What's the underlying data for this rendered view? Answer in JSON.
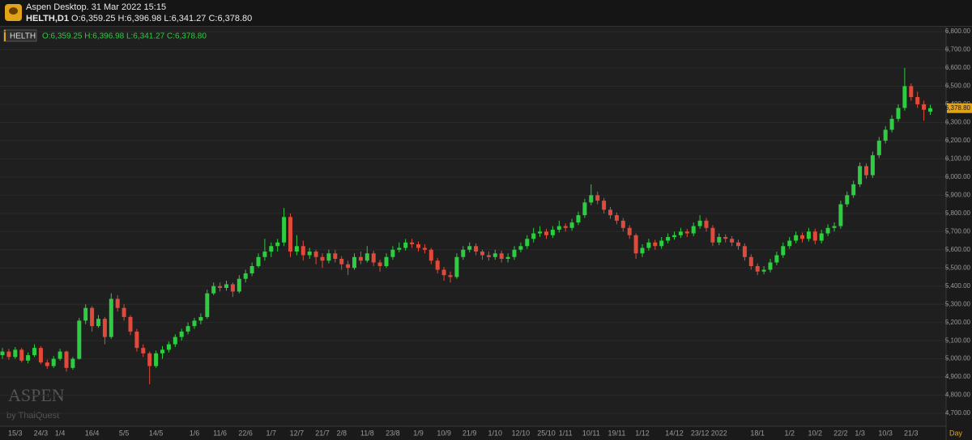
{
  "header": {
    "title": "Aspen Desktop. 31 Mar 2022 15:15",
    "symbol": "HELTH,D1",
    "ohlc_text": "O:6,359.25 H:6,396.98 L:6,341.27 C:6,378.80"
  },
  "chart_data": {
    "type": "candlestick",
    "legend_symbol": "HELTH",
    "legend_text": "O:6,359.25 H:6,396.98 L:6,341.27 C:6,378.80",
    "watermark": "ASPEN",
    "watermark_sub": "by ThaiQuest",
    "x_unit_label": "Day",
    "last_label": {
      "value": 6378.8,
      "label": "6,378.80"
    },
    "up_color": "#2ecc40",
    "down_color": "#e04a3a",
    "grid": true,
    "ylim": [
      4629,
      6827
    ],
    "yticks": [
      {
        "value": 4700,
        "label": "4,700.00"
      },
      {
        "value": 4800,
        "label": "4,800.00"
      },
      {
        "value": 4900,
        "label": "4,900.00"
      },
      {
        "value": 5000,
        "label": "5,000.00"
      },
      {
        "value": 5100,
        "label": "5,100.00"
      },
      {
        "value": 5200,
        "label": "5,200.00"
      },
      {
        "value": 5300,
        "label": "5,300.00"
      },
      {
        "value": 5400,
        "label": "5,400.00"
      },
      {
        "value": 5500,
        "label": "5,500.00"
      },
      {
        "value": 5600,
        "label": "5,600.00"
      },
      {
        "value": 5700,
        "label": "5,700.00"
      },
      {
        "value": 5800,
        "label": "5,800.00"
      },
      {
        "value": 5900,
        "label": "5,900.00"
      },
      {
        "value": 6000,
        "label": "6,000.00"
      },
      {
        "value": 6100,
        "label": "6,100.00"
      },
      {
        "value": 6200,
        "label": "6,200.00"
      },
      {
        "value": 6300,
        "label": "6,300.00"
      },
      {
        "value": 6400,
        "label": "6,400.00"
      },
      {
        "value": 6500,
        "label": "6,500.00"
      },
      {
        "value": 6600,
        "label": "6,600.00"
      },
      {
        "value": 6700,
        "label": "6,700.00"
      },
      {
        "value": 6800,
        "label": "6,800.00"
      }
    ],
    "categories": [
      null,
      null,
      "15/3",
      null,
      null,
      null,
      "24/3",
      null,
      null,
      "1/4",
      null,
      null,
      null,
      null,
      "16/4",
      null,
      null,
      null,
      null,
      "5/5",
      null,
      null,
      null,
      null,
      "14/5",
      null,
      null,
      null,
      null,
      null,
      "1/6",
      null,
      null,
      null,
      "11/6",
      null,
      null,
      null,
      "22/6",
      null,
      null,
      null,
      "1/7",
      null,
      null,
      null,
      "12/7",
      null,
      null,
      null,
      "21/7",
      null,
      null,
      "2/8",
      null,
      null,
      null,
      "11/8",
      null,
      null,
      null,
      "23/8",
      null,
      null,
      null,
      "1/9",
      null,
      null,
      null,
      "10/9",
      null,
      null,
      null,
      "21/9",
      null,
      null,
      null,
      "1/10",
      null,
      null,
      null,
      "12/10",
      null,
      null,
      null,
      "25/10",
      null,
      null,
      "1/11",
      null,
      null,
      null,
      "10/11",
      null,
      null,
      null,
      "19/11",
      null,
      null,
      null,
      "1/12",
      null,
      null,
      null,
      null,
      "14/12",
      null,
      null,
      null,
      "23/12",
      null,
      null,
      "2022",
      null,
      null,
      null,
      null,
      null,
      "18/1",
      null,
      null,
      null,
      null,
      "1/2",
      null,
      null,
      null,
      "10/2",
      null,
      null,
      null,
      "22/2",
      null,
      null,
      "1/3",
      null,
      null,
      null,
      "10/3",
      null,
      null,
      null,
      "21/3",
      null,
      null,
      null
    ],
    "ohlc": [
      [
        5020,
        5060,
        5000,
        5040
      ],
      [
        5040,
        5055,
        4995,
        5010
      ],
      [
        5010,
        5065,
        5000,
        5050
      ],
      [
        5050,
        5060,
        4980,
        4990
      ],
      [
        4990,
        5035,
        4975,
        5020
      ],
      [
        5020,
        5080,
        5010,
        5060
      ],
      [
        5060,
        5070,
        4970,
        4980
      ],
      [
        4980,
        4995,
        4945,
        4960
      ],
      [
        4960,
        5015,
        4950,
        5000
      ],
      [
        5000,
        5055,
        4990,
        5040
      ],
      [
        5040,
        5045,
        4930,
        4950
      ],
      [
        4950,
        5010,
        4940,
        5000
      ],
      [
        5000,
        5225,
        4995,
        5210
      ],
      [
        5210,
        5300,
        5190,
        5280
      ],
      [
        5280,
        5290,
        5150,
        5180
      ],
      [
        5180,
        5240,
        5170,
        5220
      ],
      [
        5220,
        5230,
        5080,
        5120
      ],
      [
        5120,
        5360,
        5110,
        5330
      ],
      [
        5330,
        5350,
        5260,
        5280
      ],
      [
        5280,
        5300,
        5210,
        5230
      ],
      [
        5230,
        5240,
        5130,
        5150
      ],
      [
        5150,
        5165,
        5040,
        5060
      ],
      [
        5060,
        5080,
        5010,
        5030
      ],
      [
        5030,
        5040,
        4860,
        4960
      ],
      [
        4960,
        5045,
        4950,
        5030
      ],
      [
        5030,
        5070,
        5000,
        5050
      ],
      [
        5050,
        5095,
        5035,
        5080
      ],
      [
        5080,
        5135,
        5065,
        5120
      ],
      [
        5120,
        5165,
        5100,
        5150
      ],
      [
        5150,
        5200,
        5135,
        5180
      ],
      [
        5180,
        5225,
        5165,
        5210
      ],
      [
        5210,
        5250,
        5190,
        5230
      ],
      [
        5230,
        5380,
        5220,
        5360
      ],
      [
        5360,
        5420,
        5350,
        5400
      ],
      [
        5400,
        5420,
        5370,
        5390
      ],
      [
        5390,
        5430,
        5375,
        5410
      ],
      [
        5410,
        5420,
        5340,
        5370
      ],
      [
        5370,
        5460,
        5360,
        5440
      ],
      [
        5440,
        5490,
        5420,
        5470
      ],
      [
        5470,
        5530,
        5455,
        5510
      ],
      [
        5510,
        5580,
        5500,
        5560
      ],
      [
        5560,
        5660,
        5540,
        5590
      ],
      [
        5590,
        5640,
        5560,
        5620
      ],
      [
        5620,
        5660,
        5590,
        5640
      ],
      [
        5640,
        5830,
        5620,
        5780
      ],
      [
        5780,
        5800,
        5560,
        5590
      ],
      [
        5590,
        5680,
        5570,
        5620
      ],
      [
        5620,
        5650,
        5540,
        5570
      ],
      [
        5570,
        5610,
        5550,
        5590
      ],
      [
        5590,
        5600,
        5520,
        5560
      ],
      [
        5560,
        5580,
        5500,
        5540
      ],
      [
        5540,
        5600,
        5525,
        5580
      ],
      [
        5580,
        5600,
        5530,
        5550
      ],
      [
        5550,
        5565,
        5490,
        5520
      ],
      [
        5520,
        5540,
        5460,
        5500
      ],
      [
        5500,
        5580,
        5490,
        5560
      ],
      [
        5560,
        5590,
        5520,
        5540
      ],
      [
        5540,
        5620,
        5530,
        5580
      ],
      [
        5580,
        5595,
        5510,
        5530
      ],
      [
        5530,
        5545,
        5480,
        5510
      ],
      [
        5510,
        5580,
        5500,
        5560
      ],
      [
        5560,
        5620,
        5545,
        5600
      ],
      [
        5600,
        5640,
        5585,
        5610
      ],
      [
        5610,
        5660,
        5595,
        5640
      ],
      [
        5640,
        5660,
        5610,
        5630
      ],
      [
        5630,
        5645,
        5590,
        5610
      ],
      [
        5610,
        5630,
        5580,
        5600
      ],
      [
        5600,
        5610,
        5520,
        5540
      ],
      [
        5540,
        5555,
        5470,
        5490
      ],
      [
        5490,
        5505,
        5430,
        5460
      ],
      [
        5460,
        5480,
        5420,
        5450
      ],
      [
        5450,
        5580,
        5440,
        5560
      ],
      [
        5560,
        5620,
        5545,
        5600
      ],
      [
        5600,
        5640,
        5585,
        5620
      ],
      [
        5620,
        5635,
        5570,
        5590
      ],
      [
        5590,
        5600,
        5545,
        5570
      ],
      [
        5570,
        5590,
        5540,
        5560
      ],
      [
        5560,
        5600,
        5545,
        5580
      ],
      [
        5580,
        5595,
        5530,
        5550
      ],
      [
        5550,
        5580,
        5530,
        5560
      ],
      [
        5560,
        5620,
        5545,
        5600
      ],
      [
        5600,
        5640,
        5585,
        5620
      ],
      [
        5620,
        5680,
        5605,
        5660
      ],
      [
        5660,
        5720,
        5640,
        5690
      ],
      [
        5690,
        5730,
        5670,
        5700
      ],
      [
        5700,
        5715,
        5660,
        5680
      ],
      [
        5680,
        5730,
        5665,
        5710
      ],
      [
        5710,
        5760,
        5695,
        5730
      ],
      [
        5730,
        5745,
        5700,
        5720
      ],
      [
        5720,
        5770,
        5705,
        5750
      ],
      [
        5750,
        5810,
        5735,
        5790
      ],
      [
        5790,
        5880,
        5775,
        5860
      ],
      [
        5860,
        5960,
        5845,
        5900
      ],
      [
        5900,
        5920,
        5850,
        5870
      ],
      [
        5870,
        5885,
        5800,
        5820
      ],
      [
        5820,
        5835,
        5770,
        5790
      ],
      [
        5790,
        5805,
        5740,
        5760
      ],
      [
        5760,
        5775,
        5700,
        5720
      ],
      [
        5720,
        5735,
        5660,
        5680
      ],
      [
        5680,
        5690,
        5550,
        5580
      ],
      [
        5580,
        5630,
        5560,
        5610
      ],
      [
        5610,
        5660,
        5595,
        5640
      ],
      [
        5640,
        5655,
        5600,
        5620
      ],
      [
        5620,
        5670,
        5605,
        5650
      ],
      [
        5650,
        5690,
        5635,
        5670
      ],
      [
        5670,
        5700,
        5655,
        5680
      ],
      [
        5680,
        5720,
        5665,
        5700
      ],
      [
        5700,
        5715,
        5670,
        5690
      ],
      [
        5690,
        5750,
        5675,
        5730
      ],
      [
        5730,
        5790,
        5715,
        5760
      ],
      [
        5760,
        5775,
        5700,
        5720
      ],
      [
        5720,
        5735,
        5620,
        5640
      ],
      [
        5640,
        5690,
        5625,
        5670
      ],
      [
        5670,
        5685,
        5640,
        5660
      ],
      [
        5660,
        5675,
        5620,
        5640
      ],
      [
        5640,
        5655,
        5600,
        5620
      ],
      [
        5620,
        5635,
        5540,
        5560
      ],
      [
        5560,
        5575,
        5490,
        5510
      ],
      [
        5510,
        5525,
        5460,
        5480
      ],
      [
        5480,
        5510,
        5465,
        5490
      ],
      [
        5490,
        5550,
        5475,
        5530
      ],
      [
        5530,
        5590,
        5515,
        5570
      ],
      [
        5570,
        5640,
        5555,
        5620
      ],
      [
        5620,
        5670,
        5605,
        5650
      ],
      [
        5650,
        5700,
        5635,
        5680
      ],
      [
        5680,
        5695,
        5640,
        5660
      ],
      [
        5660,
        5720,
        5645,
        5700
      ],
      [
        5700,
        5715,
        5630,
        5650
      ],
      [
        5650,
        5710,
        5635,
        5690
      ],
      [
        5690,
        5740,
        5675,
        5720
      ],
      [
        5720,
        5750,
        5700,
        5730
      ],
      [
        5730,
        5870,
        5715,
        5850
      ],
      [
        5850,
        5920,
        5835,
        5900
      ],
      [
        5900,
        5980,
        5885,
        5960
      ],
      [
        5960,
        6080,
        5945,
        6060
      ],
      [
        6060,
        6075,
        5990,
        6010
      ],
      [
        6010,
        6140,
        5995,
        6120
      ],
      [
        6120,
        6220,
        6105,
        6200
      ],
      [
        6200,
        6280,
        6185,
        6260
      ],
      [
        6260,
        6340,
        6245,
        6320
      ],
      [
        6320,
        6400,
        6305,
        6380
      ],
      [
        6380,
        6600,
        6365,
        6500
      ],
      [
        6500,
        6515,
        6420,
        6440
      ],
      [
        6440,
        6470,
        6380,
        6400
      ],
      [
        6400,
        6420,
        6310,
        6370
      ],
      [
        6359.25,
        6396.98,
        6341.27,
        6378.8
      ]
    ]
  }
}
